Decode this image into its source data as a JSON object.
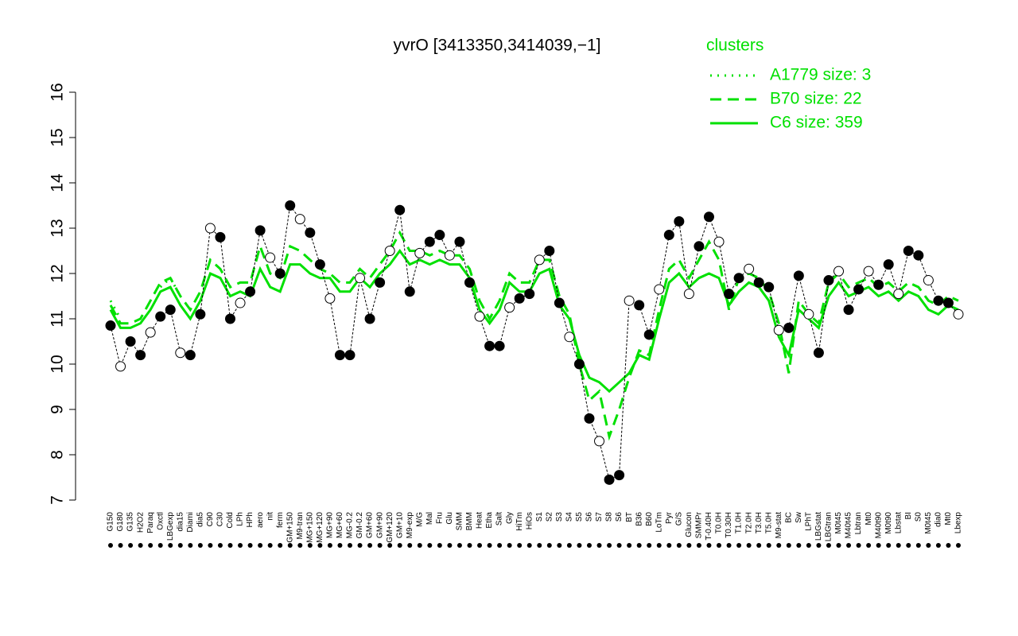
{
  "chart_data": {
    "type": "line",
    "title": "yvrO [3413350,3414039,−1]",
    "legend_title": "clusters",
    "legend_position": "top-right",
    "ylim": [
      7,
      16
    ],
    "yticks": [
      7,
      8,
      9,
      10,
      11,
      12,
      13,
      14,
      15,
      16
    ],
    "categories": [
      "G150",
      "G180",
      "G135",
      "H2O2",
      "Paraq",
      "Oxctl",
      "LBGexp",
      "dia15",
      "Diami",
      "dia5",
      "C90",
      "C30",
      "Cold",
      "LPh",
      "HPh",
      "aero",
      "nit",
      "ferm",
      "GM+150",
      "M9-tran",
      "MG+150",
      "MG+120",
      "MG+90",
      "MG+60",
      "MG-0.2",
      "GM-0.2",
      "GM+60",
      "GM+90",
      "GM+120",
      "GM+10",
      "M9-exp",
      "M/G",
      "Mal",
      "Fru",
      "Glu",
      "SMM",
      "BMM",
      "Heat",
      "Etha",
      "Salt",
      "Gly",
      "HiTm",
      "HiOs",
      "S1",
      "S2",
      "S3",
      "S4",
      "S5",
      "S6",
      "S7",
      "S8",
      "S6",
      "BT",
      "B36",
      "B60",
      "LoTm",
      "Pyr",
      "G/S",
      "Glucon",
      "SMMPr",
      "T-0.40H",
      "T0.0H",
      "T0.30H",
      "T1.0H",
      "T2.0H",
      "T3.0H",
      "T5.0H",
      "M9-stat",
      "BC",
      "Sw",
      "LPhT",
      "LBGstat",
      "LBGtran",
      "M0t45",
      "M40t45",
      "Lbtran",
      "Mt0",
      "M40t90",
      "M0t90",
      "Lbstat",
      "BI",
      "S0",
      "M0t45",
      "dia0",
      "Mt0",
      "Lbexp"
    ],
    "values": [
      10.85,
      9.95,
      10.5,
      10.2,
      10.7,
      11.05,
      11.2,
      10.25,
      10.2,
      11.1,
      13.0,
      12.8,
      11.0,
      11.35,
      11.6,
      12.95,
      12.35,
      12.0,
      13.5,
      13.2,
      12.9,
      12.2,
      11.45,
      10.2,
      10.2,
      11.9,
      11.0,
      11.8,
      12.5,
      13.4,
      11.6,
      12.45,
      12.7,
      12.85,
      12.4,
      12.7,
      11.8,
      11.05,
      10.4,
      10.4,
      11.25,
      11.45,
      11.55,
      12.3,
      12.5,
      11.35,
      10.6,
      10.0,
      8.8,
      8.3,
      7.45,
      7.55,
      11.4,
      11.3,
      10.65,
      11.65,
      12.85,
      13.15,
      11.55,
      12.6,
      13.25,
      12.7,
      11.55,
      11.9,
      12.1,
      11.8,
      11.7,
      10.75,
      10.8,
      11.95,
      11.1,
      10.25,
      11.85,
      12.05,
      11.2,
      11.65,
      12.05,
      11.75,
      12.2,
      11.55,
      12.5,
      12.4,
      11.85,
      11.4,
      11.35,
      11.1
    ],
    "series": [
      {
        "name": "A1779 size: 3",
        "color": "#00e000",
        "style": "dotted",
        "values": [
          11.4,
          11.0,
          null,
          null,
          null,
          11.7,
          11.9,
          11.5,
          null,
          null,
          null,
          null,
          null,
          null,
          null,
          null,
          null,
          null,
          null,
          null,
          null,
          null,
          null,
          null,
          null,
          null,
          null,
          null,
          null,
          null,
          null,
          null,
          null,
          null,
          null,
          null,
          null,
          null,
          null,
          null,
          null,
          null,
          null,
          null,
          null,
          null,
          null,
          null,
          null,
          null,
          null,
          null,
          null,
          null,
          null,
          null,
          null,
          null,
          null,
          null,
          null,
          null,
          null,
          null,
          null,
          null,
          null,
          null,
          null,
          null,
          null,
          null,
          null,
          null,
          null,
          null,
          null,
          null,
          null,
          null,
          null,
          null,
          null,
          null,
          null,
          null
        ]
      },
      {
        "name": "B70 size: 22",
        "color": "#00e000",
        "style": "dashed",
        "values": [
          11.3,
          10.9,
          10.9,
          11.0,
          11.4,
          11.8,
          11.9,
          11.5,
          11.2,
          11.6,
          12.3,
          12.1,
          11.7,
          11.8,
          11.8,
          12.6,
          12.0,
          11.9,
          12.6,
          12.5,
          12.3,
          12.1,
          12.0,
          11.8,
          11.8,
          12.1,
          11.9,
          12.2,
          12.5,
          12.9,
          12.5,
          12.5,
          12.4,
          12.5,
          12.4,
          12.4,
          12.1,
          11.4,
          11.0,
          11.4,
          12.0,
          11.8,
          11.8,
          12.3,
          12.3,
          11.5,
          11.1,
          10.0,
          9.2,
          9.4,
          8.4,
          9.0,
          9.7,
          10.3,
          10.2,
          11.2,
          12.1,
          12.3,
          11.9,
          12.3,
          12.7,
          12.3,
          11.2,
          11.9,
          12.0,
          11.9,
          11.6,
          10.9,
          9.8,
          11.4,
          11.1,
          10.9,
          11.8,
          12.0,
          11.7,
          11.8,
          11.9,
          11.7,
          11.8,
          11.6,
          11.8,
          11.7,
          11.4,
          11.3,
          11.5,
          11.4
        ]
      },
      {
        "name": "C6 size: 359",
        "color": "#00e000",
        "style": "solid",
        "values": [
          11.2,
          10.8,
          10.8,
          10.9,
          11.2,
          11.6,
          11.7,
          11.3,
          11.0,
          11.4,
          12.0,
          11.9,
          11.5,
          11.6,
          11.5,
          12.1,
          11.7,
          11.6,
          12.2,
          12.2,
          12.0,
          11.9,
          11.9,
          11.6,
          11.6,
          11.9,
          11.7,
          12.0,
          12.2,
          12.5,
          12.2,
          12.3,
          12.2,
          12.3,
          12.2,
          12.2,
          11.9,
          11.2,
          10.9,
          11.2,
          11.8,
          11.6,
          11.6,
          12.0,
          12.1,
          11.3,
          11.0,
          10.2,
          9.7,
          9.6,
          9.4,
          9.6,
          9.8,
          10.2,
          10.1,
          11.0,
          11.8,
          12.0,
          11.7,
          11.9,
          12.0,
          11.9,
          11.3,
          11.6,
          11.8,
          11.7,
          11.4,
          10.6,
          10.2,
          11.2,
          11.0,
          10.8,
          11.5,
          11.8,
          11.5,
          11.6,
          11.7,
          11.5,
          11.6,
          11.4,
          11.6,
          11.5,
          11.2,
          11.1,
          11.3,
          11.2
        ]
      }
    ]
  }
}
